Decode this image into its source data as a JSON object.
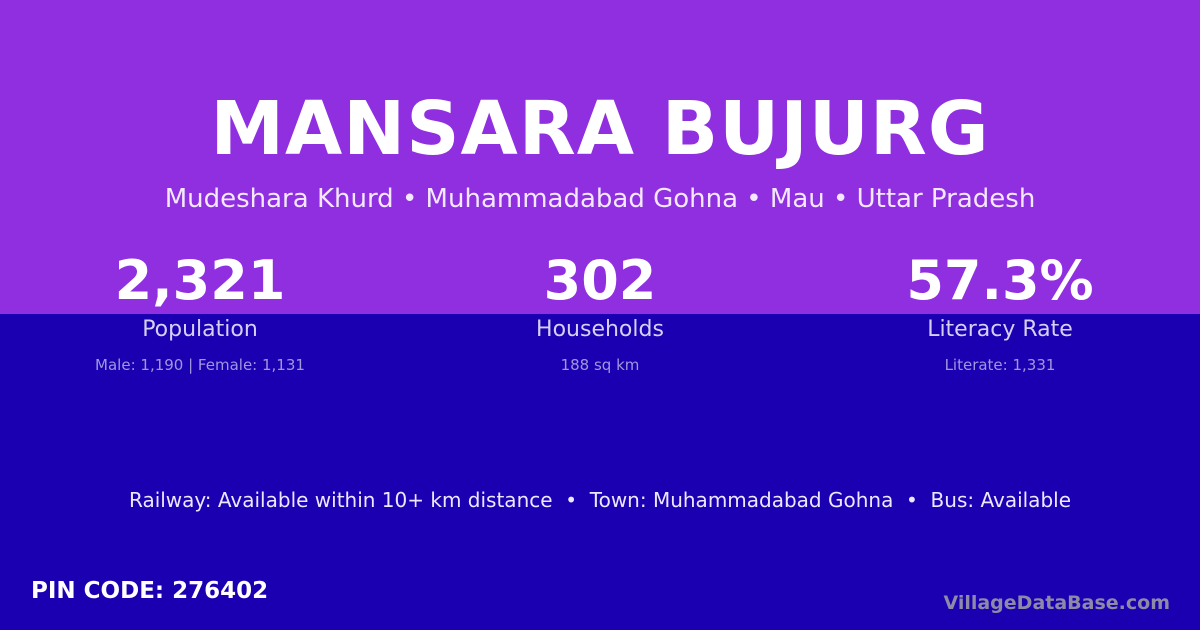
{
  "village": {
    "name": "MANSARA BUJURG",
    "location": "Mudeshara Khurd • Muhammadabad Gohna • Mau • Uttar Pradesh"
  },
  "stats": [
    {
      "value": "2,321",
      "label": "Population",
      "detail": "Male: 1,190 | Female: 1,131"
    },
    {
      "value": "302",
      "label": "Households",
      "detail": "188 sq km"
    },
    {
      "value": "57.3%",
      "label": "Literacy Rate",
      "detail": "Literate: 1,331"
    }
  ],
  "facts": "Railway: Available within 10+ km distance  •  Town: Muhammadabad Gohna  •  Bus: Available",
  "pin_code": "PIN CODE: 276402",
  "brand": "VillageDataBase.com",
  "colors": {
    "top": "#8f2fe0",
    "bottom": "#1a00b0"
  }
}
